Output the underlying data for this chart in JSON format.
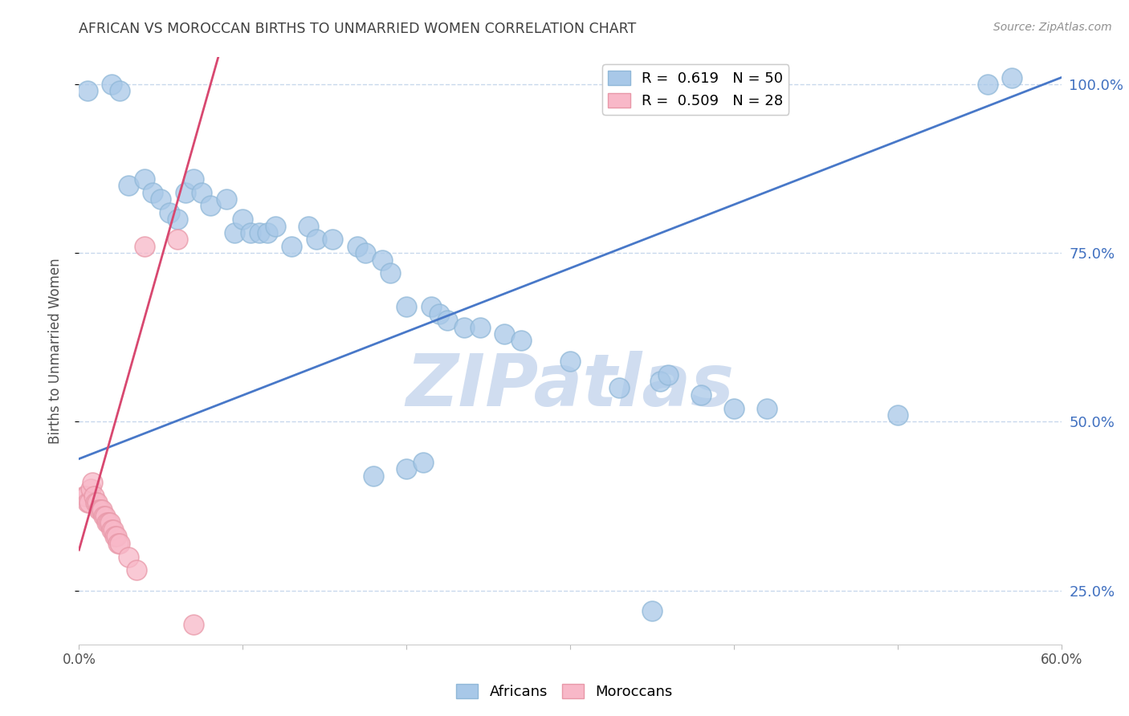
{
  "title": "AFRICAN VS MOROCCAN BIRTHS TO UNMARRIED WOMEN CORRELATION CHART",
  "source": "Source: ZipAtlas.com",
  "ylabel": "Births to Unmarried Women",
  "xmin": 0.0,
  "xmax": 0.6,
  "ymin": 0.17,
  "ymax": 1.04,
  "blue_R": 0.619,
  "blue_N": 50,
  "pink_R": 0.509,
  "pink_N": 28,
  "blue_color": "#a8c8e8",
  "pink_color": "#f8b8c8",
  "blue_edge_color": "#90b8d8",
  "pink_edge_color": "#e898a8",
  "blue_line_color": "#4878c8",
  "pink_line_color": "#d84870",
  "legend_blue_label": "R =  0.619   N = 50",
  "legend_pink_label": "R =  0.509   N = 28",
  "africans_label": "Africans",
  "moroccans_label": "Moroccans",
  "watermark": "ZIPatlas",
  "watermark_color": "#d0ddf0",
  "title_color": "#404040",
  "source_color": "#909090",
  "axis_label_color": "#505050",
  "right_tick_color": "#4070c0",
  "grid_color": "#c8d8ec",
  "blue_line_x0": 0.0,
  "blue_line_x1": 0.6,
  "blue_line_y0": 0.445,
  "blue_line_y1": 1.01,
  "pink_line_x0": 0.0,
  "pink_line_x1": 0.085,
  "pink_line_y0": 0.31,
  "pink_line_y1": 1.04,
  "blue_x": [
    0.005,
    0.02,
    0.025,
    0.03,
    0.04,
    0.045,
    0.05,
    0.055,
    0.06,
    0.065,
    0.07,
    0.075,
    0.08,
    0.09,
    0.095,
    0.1,
    0.105,
    0.11,
    0.115,
    0.12,
    0.13,
    0.14,
    0.145,
    0.155,
    0.17,
    0.175,
    0.185,
    0.19,
    0.2,
    0.215,
    0.22,
    0.225,
    0.235,
    0.245,
    0.26,
    0.27,
    0.3,
    0.33,
    0.355,
    0.36,
    0.38,
    0.4,
    0.42,
    0.5,
    0.555,
    0.57,
    0.2,
    0.21,
    0.18,
    0.35
  ],
  "blue_y": [
    0.99,
    1.0,
    0.99,
    0.85,
    0.86,
    0.84,
    0.83,
    0.81,
    0.8,
    0.84,
    0.86,
    0.84,
    0.82,
    0.83,
    0.78,
    0.8,
    0.78,
    0.78,
    0.78,
    0.79,
    0.76,
    0.79,
    0.77,
    0.77,
    0.76,
    0.75,
    0.74,
    0.72,
    0.67,
    0.67,
    0.66,
    0.65,
    0.64,
    0.64,
    0.63,
    0.62,
    0.59,
    0.55,
    0.56,
    0.57,
    0.54,
    0.52,
    0.52,
    0.51,
    1.0,
    1.01,
    0.43,
    0.44,
    0.42,
    0.22
  ],
  "pink_x": [
    0.003,
    0.004,
    0.005,
    0.006,
    0.007,
    0.008,
    0.009,
    0.01,
    0.011,
    0.012,
    0.013,
    0.014,
    0.015,
    0.016,
    0.017,
    0.018,
    0.019,
    0.02,
    0.021,
    0.022,
    0.023,
    0.024,
    0.025,
    0.03,
    0.035,
    0.04,
    0.06,
    0.07
  ],
  "pink_y": [
    0.39,
    0.39,
    0.38,
    0.38,
    0.4,
    0.41,
    0.39,
    0.38,
    0.38,
    0.37,
    0.37,
    0.37,
    0.36,
    0.36,
    0.35,
    0.35,
    0.35,
    0.34,
    0.34,
    0.33,
    0.33,
    0.32,
    0.32,
    0.3,
    0.28,
    0.76,
    0.77,
    0.2
  ]
}
